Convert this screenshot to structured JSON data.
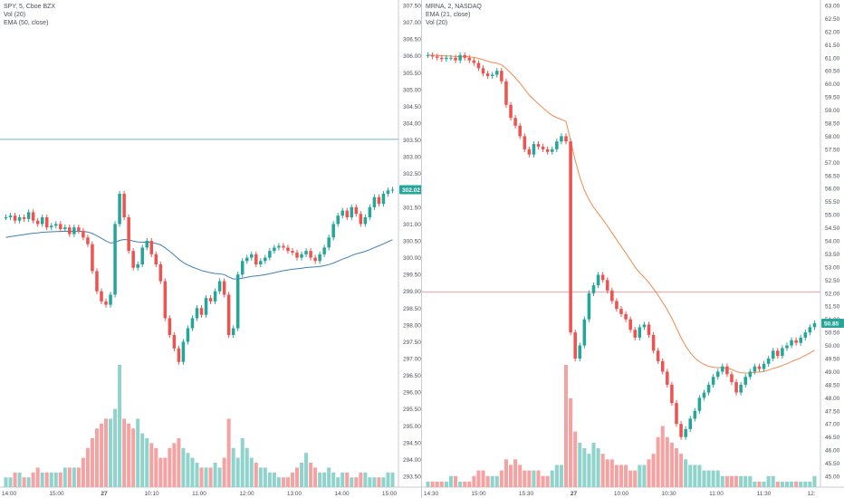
{
  "left": {
    "legend": [
      "SPY, 5, Cboe BZX",
      "Vol (20)",
      "EMA (50, close)"
    ],
    "price_axis": [
      "307.50",
      "307.00",
      "306.50",
      "306.00",
      "305.50",
      "305.00",
      "304.50",
      "304.00",
      "303.50",
      "303.00",
      "302.50",
      "302.00",
      "301.50",
      "301.00",
      "300.50",
      "300.00",
      "299.50",
      "299.00",
      "298.50",
      "298.00",
      "297.50",
      "297.00",
      "296.50",
      "296.00",
      "295.50",
      "295.00",
      "294.50",
      "294.00",
      "293.50"
    ],
    "time_axis": [
      "14:00",
      "15:00",
      "27",
      "10:10",
      "11:00",
      "12:00",
      "13:00",
      "14:00",
      "15:00"
    ],
    "last_price": "302.02",
    "hline_price": 303.52
  },
  "right": {
    "legend": [
      "MRNA, 2, NASDAQ",
      "EMA (21, close)",
      "Vol (20)"
    ],
    "price_axis": [
      "63.00",
      "62.50",
      "62.00",
      "61.50",
      "61.00",
      "60.50",
      "60.00",
      "59.50",
      "59.00",
      "58.50",
      "58.00",
      "57.50",
      "57.00",
      "56.50",
      "56.00",
      "55.50",
      "55.00",
      "54.50",
      "54.00",
      "53.50",
      "53.00",
      "52.50",
      "52.00",
      "51.50",
      "51.00",
      "50.50",
      "50.00",
      "49.50",
      "49.00",
      "48.50",
      "48.00",
      "47.50",
      "47.00",
      "46.50",
      "46.00",
      "45.50",
      "45.00"
    ],
    "time_axis": [
      "14:30",
      "15:00",
      "15:30",
      "27",
      "10:00",
      "10:30",
      "11:00",
      "11:30",
      "12:"
    ],
    "last_price": "50.85",
    "hline_price": 52.05
  },
  "colors": {
    "up": "#26a69a",
    "down": "#ef5350",
    "vol_up": "#8fd3cc",
    "vol_down": "#f5a3a2",
    "ema_left": "#3f7fb5",
    "ema_right": "#f08a50",
    "hline_left": "#6fb8cc",
    "hline_right": "#f4a0a0"
  },
  "chart_data": [
    {
      "type": "candlestick",
      "title": "SPY, 5, Cboe BZX",
      "indicators": [
        "Vol (20)",
        "EMA (50, close)"
      ],
      "ylim": [
        293.5,
        307.5
      ],
      "x_ticks": [
        "14:00",
        "15:00",
        "27",
        "10:10",
        "11:00",
        "12:00",
        "13:00",
        "14:00",
        "15:00"
      ],
      "last": 302.02,
      "closes": [
        301.2,
        301.25,
        301.1,
        301.2,
        301.15,
        301.35,
        301.1,
        301.0,
        301.2,
        300.9,
        300.95,
        301.0,
        300.85,
        300.9,
        300.7,
        300.9,
        300.8,
        300.6,
        300.4,
        299.6,
        299.0,
        298.7,
        298.6,
        298.9,
        301.0,
        301.9,
        301.2,
        300.2,
        299.7,
        299.8,
        300.3,
        300.5,
        300.1,
        299.8,
        299.3,
        298.2,
        297.7,
        297.3,
        296.9,
        297.5,
        297.9,
        298.2,
        298.5,
        298.3,
        298.8,
        298.7,
        299.0,
        299.3,
        298.9,
        297.7,
        297.9,
        299.5,
        299.9,
        300.0,
        300.1,
        299.8,
        299.9,
        300.0,
        300.2,
        300.3,
        300.35,
        300.3,
        300.2,
        300.15,
        300.0,
        300.1,
        300.2,
        300.0,
        299.9,
        300.1,
        300.3,
        300.6,
        301.0,
        301.25,
        301.4,
        301.2,
        301.5,
        301.3,
        301.0,
        301.2,
        301.5,
        301.8,
        301.6,
        301.9,
        302.0,
        302.02
      ],
      "volumes": [
        1,
        1,
        1.5,
        1.5,
        1,
        1,
        1.5,
        2,
        1.5,
        1.5,
        1.5,
        1.5,
        1.5,
        2,
        2,
        2,
        2,
        3,
        4,
        5,
        6,
        6.5,
        7,
        7,
        8,
        12.5,
        7,
        6.5,
        6,
        7,
        5.5,
        5,
        4.5,
        4,
        3,
        3,
        4,
        4.5,
        5,
        4,
        3.5,
        3,
        2.5,
        2,
        2,
        2,
        2.5,
        2,
        3,
        7,
        4,
        3,
        5,
        4,
        3,
        2.5,
        2,
        2,
        1.5,
        1.5,
        1,
        1,
        1,
        1.5,
        2,
        2.5,
        3.5,
        2.5,
        2,
        1.5,
        1.5,
        2,
        1.5,
        1,
        1.5,
        1.5,
        1,
        1,
        1.5,
        1.5,
        1,
        1,
        1,
        1,
        1.5,
        1.5
      ]
    },
    {
      "type": "candlestick",
      "title": "MRNA, 2, NASDAQ",
      "indicators": [
        "EMA (21, close)",
        "Vol (20)"
      ],
      "ylim": [
        45,
        63
      ],
      "x_ticks": [
        "14:30",
        "15:00",
        "15:30",
        "27",
        "10:00",
        "10:30",
        "11:00",
        "11:30",
        "12:"
      ],
      "last": 50.85,
      "closes": [
        61.1,
        61.05,
        61.0,
        60.95,
        61.0,
        61.0,
        60.9,
        61.1,
        61.0,
        60.9,
        60.8,
        60.6,
        60.4,
        60.3,
        60.35,
        60.5,
        60.1,
        59.2,
        58.7,
        58.4,
        58.0,
        57.5,
        57.3,
        57.7,
        57.6,
        57.5,
        57.4,
        57.5,
        57.8,
        58.0,
        57.8,
        50.5,
        49.5,
        50.0,
        51.0,
        52.0,
        52.3,
        52.7,
        52.5,
        52.1,
        51.7,
        51.4,
        51.2,
        51.0,
        50.6,
        50.3,
        50.7,
        50.8,
        50.4,
        49.8,
        49.4,
        49.0,
        48.5,
        47.8,
        47.0,
        46.5,
        46.8,
        47.2,
        47.5,
        48.0,
        48.2,
        48.5,
        48.8,
        49.0,
        49.2,
        48.9,
        48.6,
        48.2,
        48.5,
        48.8,
        49.0,
        49.2,
        49.1,
        49.3,
        49.5,
        49.8,
        49.6,
        49.9,
        50.0,
        50.2,
        50.1,
        50.3,
        50.5,
        50.7,
        50.85
      ],
      "volumes": [
        0.5,
        0.5,
        0.5,
        0.5,
        0.5,
        1,
        1,
        0.5,
        0.5,
        0.5,
        1,
        1.5,
        1.5,
        1,
        1,
        1,
        1.5,
        2.5,
        2,
        2.5,
        2,
        1.5,
        1.5,
        1.5,
        1.5,
        1,
        1,
        1.5,
        2,
        2,
        11,
        8,
        5,
        4,
        3.5,
        3,
        4,
        3.5,
        3,
        2.5,
        2.5,
        2,
        2,
        2,
        1.5,
        1.5,
        2,
        2,
        2.5,
        3,
        4.5,
        5.5,
        4.5,
        4,
        3.5,
        3,
        2.5,
        2,
        2,
        2,
        1.5,
        1.5,
        1.5,
        1.5,
        1,
        1,
        1,
        1,
        1,
        1,
        1,
        0.5,
        0.5,
        0.5,
        1,
        1,
        0.5,
        0.5,
        0.5,
        0.5,
        0.5,
        0.5,
        0.5,
        0.5,
        1
      ]
    }
  ]
}
